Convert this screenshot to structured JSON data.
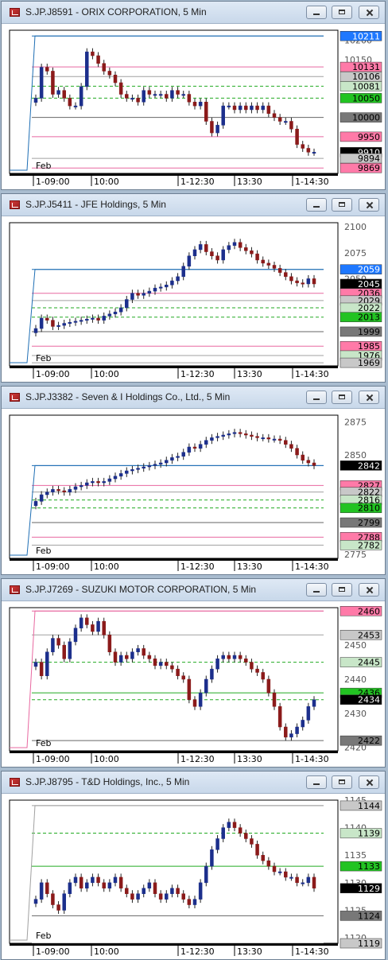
{
  "windows": [
    {
      "title": "S.JP.J8591 - ORIX CORPORATION, 5 Min",
      "chart_data": {
        "type": "candlestick",
        "ylim": [
          9855,
          10226
        ],
        "y_ticks": [
          10200,
          10150,
          10100,
          10050,
          10000,
          9950,
          9900
        ],
        "price_labels": [
          {
            "value": 10211,
            "bg": "#1e78ff",
            "fg": "#ffffff",
            "line": "#1e6eb4",
            "style": "solid"
          },
          {
            "value": 10131,
            "bg": "#ff7aa8",
            "fg": "#000000",
            "line": "#e868a0",
            "style": "solid"
          },
          {
            "value": 10106,
            "bg": "#c8c8c8",
            "fg": "#000000",
            "line": "#a0a0a0",
            "style": "solid"
          },
          {
            "value": 10081,
            "bg": "#c8e6c8",
            "fg": "#000000",
            "line": "#22aa22",
            "style": "dash"
          },
          {
            "value": 10050,
            "bg": "#22c322",
            "fg": "#000000",
            "line": "#22aa22",
            "style": "dash"
          },
          {
            "value": 10000,
            "bg": "#787878",
            "fg": "#000000",
            "line": "#666666",
            "style": "solid"
          },
          {
            "value": 9950,
            "bg": "#ff7aa8",
            "fg": "#000000",
            "line": "#e868a0",
            "style": "solid"
          },
          {
            "value": 9910,
            "bg": "#000000",
            "fg": "#ffffff",
            "line": null,
            "style": "solid"
          },
          {
            "value": 9894,
            "bg": "#c8c8c8",
            "fg": "#000000",
            "line": "#a0a0a0",
            "style": "solid"
          },
          {
            "value": 9869,
            "bg": "#ff7aa8",
            "fg": "#000000",
            "line": "#e868a0",
            "style": "solid"
          }
        ],
        "x_labels": [
          "1-09:00",
          "10:00",
          "1-12:30",
          "13:30",
          "1-14:30"
        ],
        "prev_label": "Feb",
        "closes": [
          10050,
          10130,
          10120,
          10060,
          10070,
          10050,
          10030,
          10030,
          10080,
          10170,
          10160,
          10140,
          10120,
          10110,
          10090,
          10060,
          10050,
          10050,
          10040,
          10070,
          10060,
          10060,
          10060,
          10050,
          10070,
          10060,
          10060,
          10040,
          10030,
          10040,
          9990,
          9960,
          9980,
          10030,
          10030,
          10020,
          10030,
          10020,
          10030,
          10020,
          10030,
          10010,
          10000,
          9990,
          9990,
          9970,
          9930,
          9920,
          9910,
          9910
        ]
      }
    },
    {
      "title": "S.JP.J5411 - JFE Holdings, 5 Min",
      "chart_data": {
        "type": "candlestick",
        "ylim": [
          1966,
          2104
        ],
        "y_ticks": [
          2100,
          2075,
          2050,
          2025,
          2000,
          1975
        ],
        "price_labels": [
          {
            "value": 2059,
            "bg": "#1e78ff",
            "fg": "#ffffff",
            "line": "#1e6eb4",
            "style": "solid"
          },
          {
            "value": 2045,
            "bg": "#000000",
            "fg": "#ffffff",
            "line": null,
            "style": "solid"
          },
          {
            "value": 2036,
            "bg": "#ff7aa8",
            "fg": "#000000",
            "line": "#e868a0",
            "style": "solid"
          },
          {
            "value": 2029,
            "bg": "#c8c8c8",
            "fg": "#000000",
            "line": "#a0a0a0",
            "style": "solid"
          },
          {
            "value": 2022,
            "bg": "#c8e6c8",
            "fg": "#000000",
            "line": "#22aa22",
            "style": "dash"
          },
          {
            "value": 2013,
            "bg": "#22c322",
            "fg": "#000000",
            "line": "#22aa22",
            "style": "dash"
          },
          {
            "value": 1999,
            "bg": "#787878",
            "fg": "#000000",
            "line": "#666666",
            "style": "solid"
          },
          {
            "value": 1985,
            "bg": "#ff7aa8",
            "fg": "#000000",
            "line": "#e868a0",
            "style": "solid"
          },
          {
            "value": 1976,
            "bg": "#c8e6c8",
            "fg": "#000000",
            "line": "#a0a0a0",
            "style": "solid"
          },
          {
            "value": 1969,
            "bg": "#c8c8c8",
            "fg": "#000000",
            "line": "#a0a0a0",
            "style": "solid"
          }
        ],
        "x_labels": [
          "1-09:00",
          "10:00",
          "1-12:30",
          "13:30",
          "1-14:30"
        ],
        "prev_label": "Feb",
        "closes": [
          2002,
          2012,
          2010,
          2004,
          2005,
          2007,
          2008,
          2009,
          2010,
          2011,
          2012,
          2010,
          2014,
          2016,
          2018,
          2022,
          2030,
          2036,
          2034,
          2036,
          2038,
          2041,
          2042,
          2044,
          2048,
          2052,
          2062,
          2072,
          2078,
          2083,
          2076,
          2072,
          2068,
          2078,
          2082,
          2085,
          2080,
          2077,
          2074,
          2068,
          2065,
          2063,
          2060,
          2056,
          2052,
          2048,
          2046,
          2045,
          2050,
          2045
        ]
      }
    },
    {
      "title": "S.JP.J3382 - Seven & I Holdings Co., Ltd., 5 Min",
      "chart_data": {
        "type": "candlestick",
        "ylim": [
          2772,
          2880
        ],
        "y_ticks": [
          2875,
          2850,
          2825,
          2800,
          2775
        ],
        "price_labels": [
          {
            "value": 2842,
            "bg": "#000000",
            "fg": "#ffffff",
            "line": "#1e6eb4",
            "style": "solid"
          },
          {
            "value": 2827,
            "bg": "#ff7aa8",
            "fg": "#000000",
            "line": "#e868a0",
            "style": "solid"
          },
          {
            "value": 2822,
            "bg": "#c8c8c8",
            "fg": "#000000",
            "line": "#a0a0a0",
            "style": "solid"
          },
          {
            "value": 2816,
            "bg": "#c8e6c8",
            "fg": "#000000",
            "line": "#22aa22",
            "style": "dash"
          },
          {
            "value": 2810,
            "bg": "#22c322",
            "fg": "#000000",
            "line": "#22aa22",
            "style": "dash"
          },
          {
            "value": 2799,
            "bg": "#787878",
            "fg": "#000000",
            "line": "#666666",
            "style": "solid"
          },
          {
            "value": 2788,
            "bg": "#ff7aa8",
            "fg": "#000000",
            "line": "#e868a0",
            "style": "solid"
          },
          {
            "value": 2782,
            "bg": "#c8e6c8",
            "fg": "#000000",
            "line": "#a0a0a0",
            "style": "solid"
          }
        ],
        "x_labels": [
          "1-09:00",
          "10:00",
          "1-12:30",
          "13:30",
          "1-14:30"
        ],
        "prev_label": "Feb",
        "closes": [
          2815,
          2820,
          2822,
          2824,
          2823,
          2822,
          2824,
          2826,
          2827,
          2829,
          2830,
          2829,
          2830,
          2832,
          2834,
          2836,
          2838,
          2839,
          2840,
          2841,
          2842,
          2843,
          2844,
          2846,
          2848,
          2849,
          2852,
          2856,
          2855,
          2858,
          2861,
          2863,
          2864,
          2865,
          2866,
          2867,
          2866,
          2865,
          2864,
          2863,
          2863,
          2862,
          2862,
          2861,
          2858,
          2855,
          2850,
          2846,
          2844,
          2842
        ]
      }
    },
    {
      "title": "S.JP.J7269 - SUZUKI MOTOR CORPORATION, 5 Min",
      "chart_data": {
        "type": "candlestick",
        "ylim": [
          2419,
          2461
        ],
        "y_ticks": [
          2450,
          2440,
          2430,
          2420
        ],
        "price_labels": [
          {
            "value": 2460,
            "bg": "#ff7aa8",
            "fg": "#000000",
            "line": "#e868a0",
            "style": "solid"
          },
          {
            "value": 2453,
            "bg": "#c8c8c8",
            "fg": "#000000",
            "line": "#a0a0a0",
            "style": "solid"
          },
          {
            "value": 2445,
            "bg": "#c8e6c8",
            "fg": "#000000",
            "line": "#22aa22",
            "style": "dash"
          },
          {
            "value": 2436,
            "bg": "#22c322",
            "fg": "#000000",
            "line": "#22aa22",
            "style": "solid"
          },
          {
            "value": 2434,
            "bg": "#000000",
            "fg": "#ffffff",
            "line": "#22aa22",
            "style": "dash"
          },
          {
            "value": 2422,
            "bg": "#787878",
            "fg": "#000000",
            "line": "#666666",
            "style": "solid"
          }
        ],
        "x_labels": [
          "1-09:00",
          "10:00",
          "1-12:30",
          "13:30",
          "1-14:30"
        ],
        "prev_label": "Feb",
        "closes": [
          2445,
          2441,
          2448,
          2452,
          2450,
          2446,
          2451,
          2455,
          2458,
          2456,
          2454,
          2457,
          2453,
          2448,
          2445,
          2447,
          2446,
          2448,
          2449,
          2447,
          2446,
          2444,
          2445,
          2444,
          2443,
          2441,
          2440,
          2434,
          2432,
          2436,
          2440,
          2443,
          2446,
          2447,
          2446,
          2447,
          2446,
          2445,
          2443,
          2442,
          2440,
          2436,
          2432,
          2426,
          2423,
          2424,
          2426,
          2428,
          2432,
          2434
        ]
      }
    },
    {
      "title": "S.JP.J8795 - T&D Holdings, Inc., 5 Min",
      "chart_data": {
        "type": "candlestick",
        "ylim": [
          1119,
          1145
        ],
        "y_ticks": [
          1145,
          1140,
          1135,
          1130,
          1125,
          1120
        ],
        "price_labels": [
          {
            "value": 1144,
            "bg": "#c8c8c8",
            "fg": "#000000",
            "line": "#a0a0a0",
            "style": "solid"
          },
          {
            "value": 1139,
            "bg": "#c8e6c8",
            "fg": "#000000",
            "line": "#22aa22",
            "style": "dash"
          },
          {
            "value": 1133,
            "bg": "#22c322",
            "fg": "#000000",
            "line": "#22aa22",
            "style": "solid"
          },
          {
            "value": 1129,
            "bg": "#000000",
            "fg": "#ffffff",
            "line": null,
            "style": "solid"
          },
          {
            "value": 1124,
            "bg": "#787878",
            "fg": "#000000",
            "line": "#666666",
            "style": "solid"
          },
          {
            "value": 1119,
            "bg": "#c8c8c8",
            "fg": "#000000",
            "line": "#a0a0a0",
            "style": "solid"
          }
        ],
        "x_labels": [
          "1-09:00",
          "10:00",
          "1-12:30",
          "13:30",
          "1-14:30"
        ],
        "prev_label": "Feb",
        "closes": [
          1127,
          1130,
          1128,
          1126,
          1125,
          1128,
          1130,
          1131,
          1129,
          1130,
          1131,
          1130,
          1129,
          1130,
          1131,
          1129,
          1128,
          1127,
          1128,
          1129,
          1130,
          1128,
          1127,
          1128,
          1129,
          1128,
          1127,
          1126,
          1127,
          1130,
          1133,
          1136,
          1138,
          1140,
          1141,
          1140,
          1139,
          1138,
          1137,
          1135,
          1134,
          1133,
          1132,
          1132,
          1131,
          1131,
          1130,
          1130,
          1131,
          1129
        ]
      }
    }
  ]
}
